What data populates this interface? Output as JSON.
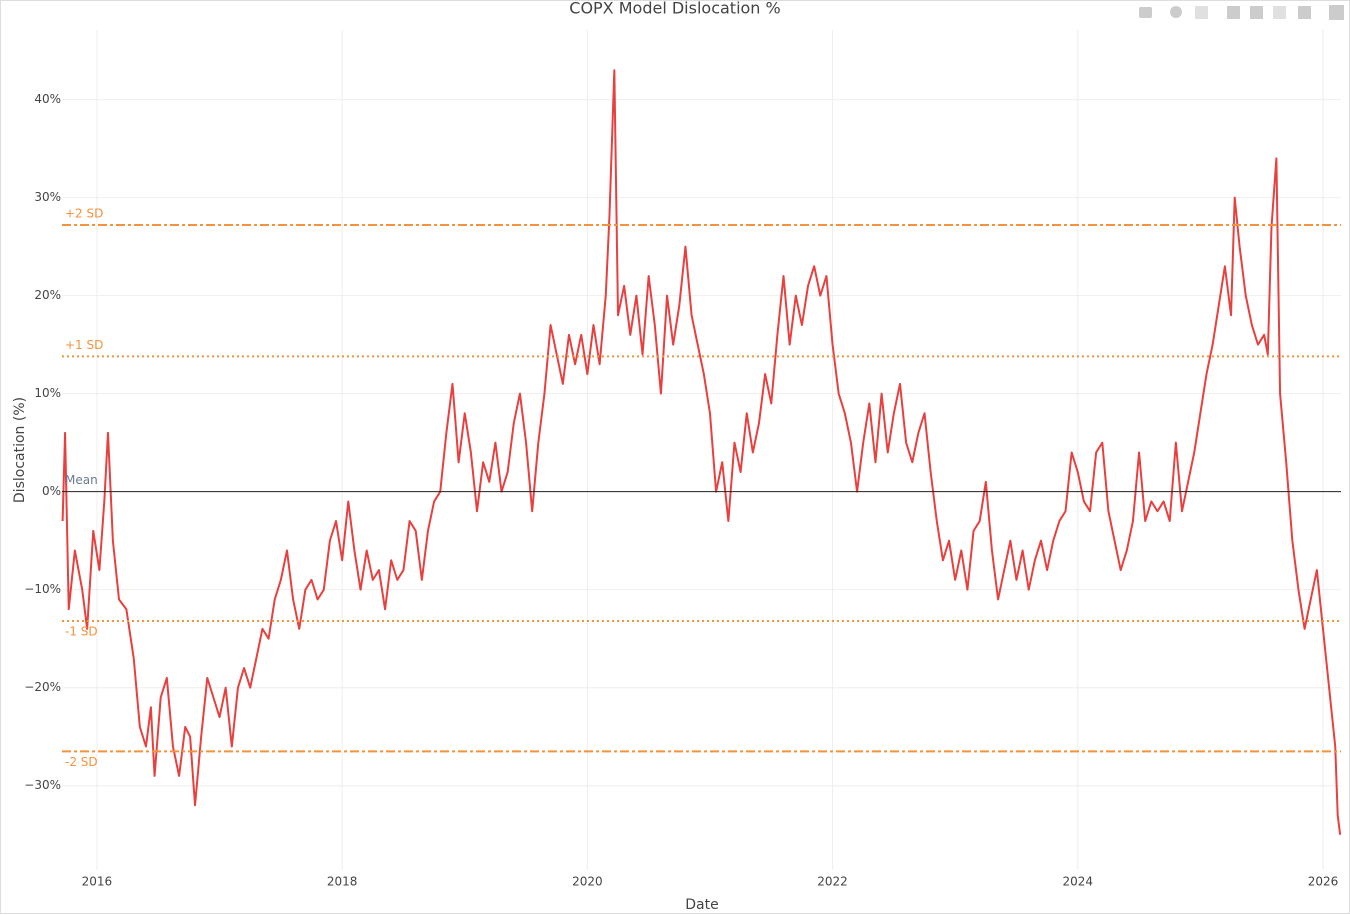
{
  "chart_data": {
    "type": "line",
    "title": "COPX Model Dislocation %",
    "x_label": "Date",
    "y_label": "Dislocation (%)",
    "color": "#e8403f",
    "grid": true,
    "xlim": [
      2015.715,
      2026.147
    ],
    "xticks": [
      2016,
      2018,
      2020,
      2022,
      2024,
      2026
    ],
    "ylim": [
      -38.6,
      47.1
    ],
    "yticks": [
      {
        "value": -30,
        "label": "−30%"
      },
      {
        "value": -20,
        "label": "−20%"
      },
      {
        "value": -10,
        "label": "−10%"
      },
      {
        "value": 0,
        "label": "0%"
      },
      {
        "value": 10,
        "label": "10%"
      },
      {
        "value": 20,
        "label": "20%"
      },
      {
        "value": 30,
        "label": "30%"
      },
      {
        "value": 40,
        "label": "40%"
      }
    ],
    "reference_lines": [
      {
        "label": "Mean",
        "value": 0,
        "color": "#222222",
        "style": "solid"
      },
      {
        "label": "+1 SD",
        "value": 13.8,
        "color": "#f5923e",
        "style": "dotted"
      },
      {
        "label": "-1 SD",
        "value": -13.2,
        "color": "#f5923e",
        "style": "dotted"
      },
      {
        "label": "+2 SD",
        "value": 27.2,
        "color": "#f5923e",
        "style": "dashdot"
      },
      {
        "label": "-2 SD",
        "value": -26.5,
        "color": "#f5923e",
        "style": "dashdot"
      }
    ],
    "x": [
      2015.72,
      2015.74,
      2015.77,
      2015.82,
      2015.88,
      2015.92,
      2015.97,
      2016.02,
      2016.06,
      2016.09,
      2016.13,
      2016.18,
      2016.24,
      2016.3,
      2016.35,
      2016.4,
      2016.44,
      2016.47,
      2016.52,
      2016.57,
      2016.62,
      2016.67,
      2016.72,
      2016.76,
      2016.8,
      2016.85,
      2016.9,
      2016.95,
      2017.0,
      2017.05,
      2017.1,
      2017.15,
      2017.2,
      2017.25,
      2017.3,
      2017.35,
      2017.4,
      2017.45,
      2017.5,
      2017.55,
      2017.6,
      2017.65,
      2017.7,
      2017.75,
      2017.8,
      2017.85,
      2017.9,
      2017.95,
      2018.0,
      2018.05,
      2018.1,
      2018.15,
      2018.2,
      2018.25,
      2018.3,
      2018.35,
      2018.4,
      2018.45,
      2018.5,
      2018.55,
      2018.6,
      2018.65,
      2018.7,
      2018.75,
      2018.8,
      2018.85,
      2018.9,
      2018.95,
      2019.0,
      2019.05,
      2019.1,
      2019.15,
      2019.2,
      2019.25,
      2019.3,
      2019.35,
      2019.4,
      2019.45,
      2019.5,
      2019.55,
      2019.6,
      2019.65,
      2019.7,
      2019.75,
      2019.8,
      2019.85,
      2019.9,
      2019.95,
      2020.0,
      2020.05,
      2020.1,
      2020.15,
      2020.18,
      2020.22,
      2020.25,
      2020.3,
      2020.35,
      2020.4,
      2020.45,
      2020.5,
      2020.55,
      2020.6,
      2020.65,
      2020.7,
      2020.75,
      2020.8,
      2020.85,
      2020.9,
      2020.95,
      2021.0,
      2021.05,
      2021.1,
      2021.15,
      2021.2,
      2021.25,
      2021.3,
      2021.35,
      2021.4,
      2021.45,
      2021.5,
      2021.55,
      2021.6,
      2021.65,
      2021.7,
      2021.75,
      2021.8,
      2021.85,
      2021.9,
      2021.95,
      2022.0,
      2022.05,
      2022.1,
      2022.15,
      2022.2,
      2022.25,
      2022.3,
      2022.35,
      2022.4,
      2022.45,
      2022.5,
      2022.55,
      2022.6,
      2022.65,
      2022.7,
      2022.75,
      2022.8,
      2022.85,
      2022.9,
      2022.95,
      2023.0,
      2023.05,
      2023.1,
      2023.15,
      2023.2,
      2023.25,
      2023.3,
      2023.35,
      2023.4,
      2023.45,
      2023.5,
      2023.55,
      2023.6,
      2023.65,
      2023.7,
      2023.75,
      2023.8,
      2023.85,
      2023.9,
      2023.95,
      2024.0,
      2024.05,
      2024.1,
      2024.15,
      2024.2,
      2024.25,
      2024.3,
      2024.35,
      2024.4,
      2024.45,
      2024.5,
      2024.55,
      2024.6,
      2024.65,
      2024.7,
      2024.75,
      2024.8,
      2024.85,
      2024.9,
      2024.95,
      2025.0,
      2025.05,
      2025.1,
      2025.15,
      2025.2,
      2025.25,
      2025.28,
      2025.32,
      2025.37,
      2025.42,
      2025.47,
      2025.52,
      2025.55,
      2025.58,
      2025.62,
      2025.65,
      2025.7,
      2025.75,
      2025.8,
      2025.85,
      2025.9,
      2025.95,
      2026.0,
      2026.05,
      2026.1,
      2026.12,
      2026.14
    ],
    "values": [
      -3,
      6,
      -12,
      -6,
      -10,
      -14,
      -4,
      -8,
      -1,
      6,
      -5,
      -11,
      -12,
      -17,
      -24,
      -26,
      -22,
      -29,
      -21,
      -19,
      -26,
      -29,
      -24,
      -25,
      -32,
      -25,
      -19,
      -21,
      -23,
      -20,
      -26,
      -20,
      -18,
      -20,
      -17,
      -14,
      -15,
      -11,
      -9,
      -6,
      -11,
      -14,
      -10,
      -9,
      -11,
      -10,
      -5,
      -3,
      -7,
      -1,
      -6,
      -10,
      -6,
      -9,
      -8,
      -12,
      -7,
      -9,
      -8,
      -3,
      -4,
      -9,
      -4,
      -1,
      0,
      6,
      11,
      3,
      8,
      4,
      -2,
      3,
      1,
      5,
      0,
      2,
      7,
      10,
      5,
      -2,
      5,
      10,
      17,
      14,
      11,
      16,
      13,
      16,
      12,
      17,
      13,
      20,
      28,
      43,
      18,
      21,
      16,
      20,
      14,
      22,
      17,
      10,
      20,
      15,
      19,
      25,
      18,
      15,
      12,
      8,
      0,
      3,
      -3,
      5,
      2,
      8,
      4,
      7,
      12,
      9,
      16,
      22,
      15,
      20,
      17,
      21,
      23,
      20,
      22,
      15,
      10,
      8,
      5,
      0,
      5,
      9,
      3,
      10,
      4,
      8,
      11,
      5,
      3,
      6,
      8,
      2,
      -3,
      -7,
      -5,
      -9,
      -6,
      -10,
      -4,
      -3,
      1,
      -6,
      -11,
      -8,
      -5,
      -9,
      -6,
      -10,
      -7,
      -5,
      -8,
      -5,
      -3,
      -2,
      4,
      2,
      -1,
      -2,
      4,
      5,
      -2,
      -5,
      -8,
      -6,
      -3,
      4,
      -3,
      -1,
      -2,
      -1,
      -3,
      5,
      -2,
      1,
      4,
      8,
      12,
      15,
      19,
      23,
      18,
      30,
      25,
      20,
      17,
      15,
      16,
      14,
      27,
      34,
      10,
      3,
      -5,
      -10,
      -14,
      -11,
      -8,
      -14,
      -20,
      -26,
      -33,
      -35
    ]
  }
}
